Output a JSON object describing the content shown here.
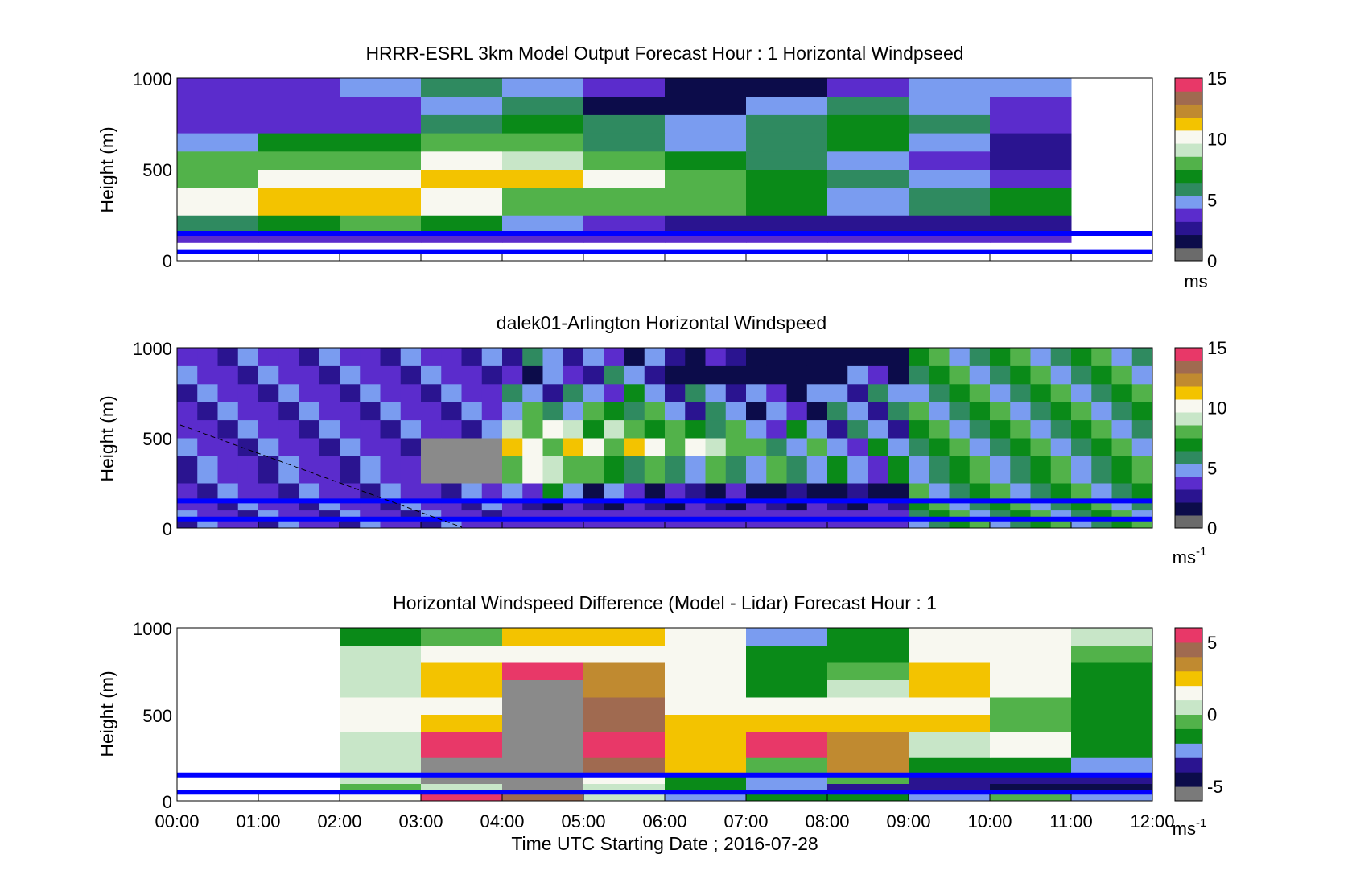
{
  "figure": {
    "xlabel": "Time UTC  Starting Date ; 2016-07-28",
    "xticks": [
      "00:00",
      "01:00",
      "02:00",
      "03:00",
      "04:00",
      "05:00",
      "06:00",
      "07:00",
      "08:00",
      "09:00",
      "10:00",
      "11:00",
      "12:00"
    ]
  },
  "colors": {
    "wind_map": [
      "#6b6b6b",
      "#0c0c4a",
      "#2a1490",
      "#5b2ccc",
      "#7a9cf0",
      "#2f8a60",
      "#0a8a18",
      "#52b24a",
      "#c8e6c8",
      "#f8f8f0",
      "#f3c300",
      "#c08a30",
      "#a06a50",
      "#e83868"
    ],
    "diff_map": [
      "#7a7a7a",
      "#0c0c4a",
      "#2a1490",
      "#7a9cf0",
      "#0a8a18",
      "#52b24a",
      "#c8e6c8",
      "#f8f8f0",
      "#f3c300",
      "#c08a30",
      "#a06a50",
      "#e83868"
    ],
    "line": "#0000ff",
    "missing": "#8a8a8a"
  },
  "chart_data": [
    {
      "type": "heatmap",
      "title": "HRRR-ESRL 3km Model Output   Forecast Hour : 1 Horizontal Windpseed",
      "ylabel": "Height (m)",
      "yticks": [
        "0",
        "500",
        "1000"
      ],
      "ylim": [
        0,
        1000
      ],
      "xlim": [
        0,
        12
      ],
      "x_hours": [
        0,
        1,
        2,
        3,
        4,
        5,
        6,
        7,
        8,
        9,
        10,
        11
      ],
      "height_bands_m": [
        0,
        50,
        100,
        150,
        250,
        400,
        500,
        600,
        700,
        800,
        900,
        1000
      ],
      "values": [
        [
          null,
          null,
          null,
          null,
          null,
          null,
          null,
          null,
          null,
          null,
          null
        ],
        [
          null,
          null,
          null,
          null,
          null,
          null,
          null,
          null,
          null,
          null,
          null
        ],
        [
          3,
          3,
          3,
          3,
          3,
          3,
          3,
          3,
          3,
          3,
          3
        ],
        [
          5,
          6,
          7,
          6,
          4,
          3,
          2,
          2,
          2,
          2,
          2
        ],
        [
          10,
          11,
          11,
          10,
          8,
          7,
          7,
          6,
          4,
          5,
          6
        ],
        [
          8,
          10,
          10,
          11,
          11,
          10,
          7,
          6,
          5,
          4,
          3
        ],
        [
          7,
          8,
          8,
          10,
          9,
          8,
          6,
          5,
          4,
          3,
          2
        ],
        [
          4,
          6,
          6,
          7,
          8,
          5,
          4,
          5,
          6,
          4,
          2
        ],
        [
          3,
          3,
          3,
          5,
          6,
          5,
          4,
          5,
          6,
          5,
          3
        ],
        [
          3,
          3,
          3,
          4,
          5,
          1,
          0,
          4,
          5,
          4,
          3
        ],
        [
          3,
          3,
          4,
          5,
          4,
          3,
          1,
          1,
          3,
          4,
          4
        ]
      ],
      "colorbar": {
        "ticks": [
          "0",
          "5",
          "10",
          "15"
        ],
        "range": [
          0,
          15
        ],
        "unit": "ms"
      },
      "lines_m": [
        150,
        50
      ]
    },
    {
      "type": "heatmap",
      "title": "dalek01-Arlington  Horizontal Windspeed",
      "ylabel": "Height (m)",
      "yticks": [
        "0",
        "500",
        "1000"
      ],
      "ylim": [
        0,
        1000
      ],
      "xlim": [
        0,
        12
      ],
      "profile_minutes": 15,
      "colorbar": {
        "ticks": [
          "0",
          "5",
          "10",
          "15"
        ],
        "range": [
          0,
          15
        ],
        "unit": "ms",
        "unit_sup": "-1"
      },
      "lines_m": [
        150,
        50
      ]
    },
    {
      "type": "heatmap",
      "title": "Horizontal Windspeed Difference (Model - Lidar) Forecast Hour : 1",
      "ylabel": "Height (m)",
      "yticks": [
        "0",
        "500",
        "1000"
      ],
      "ylim": [
        0,
        1000
      ],
      "xlim": [
        0,
        12
      ],
      "x_hours": [
        0,
        1,
        2,
        3,
        4,
        5,
        6,
        7,
        8,
        9,
        10,
        11
      ],
      "height_bands_m": [
        0,
        50,
        100,
        150,
        250,
        400,
        500,
        600,
        700,
        800,
        900,
        1000
      ],
      "values": [
        [
          null,
          null,
          1,
          5,
          4,
          0,
          -3,
          -2,
          -2,
          -3,
          -1,
          -3
        ],
        [
          null,
          null,
          -1,
          0,
          null,
          0,
          -2,
          -3,
          -4,
          -4,
          -5,
          -5
        ],
        [
          null,
          null,
          0,
          null,
          null,
          1,
          -2,
          -3,
          -1,
          -4,
          -4,
          -4
        ],
        [
          null,
          null,
          0,
          null,
          null,
          4,
          2,
          -1,
          3,
          -2,
          -2,
          -3
        ],
        [
          null,
          null,
          0,
          5,
          null,
          5,
          2,
          5,
          3,
          0,
          1,
          -2
        ],
        [
          null,
          null,
          1,
          2,
          null,
          4,
          2,
          2,
          2,
          2,
          -1,
          -2
        ],
        [
          null,
          null,
          1,
          1,
          null,
          4,
          1,
          1,
          1,
          1,
          -1,
          -2
        ],
        [
          null,
          null,
          0,
          2,
          null,
          3,
          1,
          -2,
          0,
          2,
          1,
          -2
        ],
        [
          null,
          null,
          0,
          2,
          5,
          3,
          1,
          -2,
          -1,
          2,
          1,
          -2
        ],
        [
          null,
          null,
          0,
          1,
          1,
          1,
          1,
          -2,
          -2,
          1,
          1,
          -1
        ],
        [
          null,
          null,
          -2,
          -1,
          2,
          2,
          1,
          -3,
          -2,
          1,
          1,
          0
        ]
      ],
      "colorbar": {
        "ticks": [
          "-5",
          "0",
          "5"
        ],
        "range": [
          -6,
          6
        ],
        "unit": "ms",
        "unit_sup": "-1"
      },
      "lines_m": [
        150,
        50
      ]
    }
  ]
}
